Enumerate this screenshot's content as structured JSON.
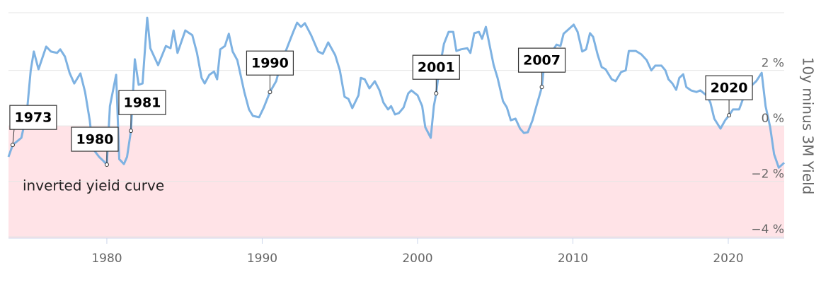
{
  "chart_data": {
    "type": "line",
    "y_axis_title": "10y minus 3M Yield",
    "xlim": [
      1973.67,
      2023.6
    ],
    "xticks": [
      1980,
      1990,
      2000,
      2010,
      2020
    ],
    "ylim": [
      -4.05,
      4.08
    ],
    "yticks": [
      {
        "value": -4,
        "label": "−4 %"
      },
      {
        "value": -2,
        "label": "−2 %"
      },
      {
        "value": 0,
        "label": "0 %"
      },
      {
        "value": 2,
        "label": "2 %"
      }
    ],
    "grid": true,
    "bands": [
      {
        "label": "inverted yield curve",
        "from": -4.05,
        "to": 0,
        "color": "#ffe3e7"
      }
    ],
    "series": [
      {
        "color": "#7eb2e2",
        "x": [
          1973.67,
          1973.94,
          1974.5,
          1974.85,
          1975.1,
          1975.3,
          1975.6,
          1976.1,
          1976.4,
          1976.8,
          1977.0,
          1977.3,
          1977.6,
          1977.9,
          1978.3,
          1978.6,
          1978.9,
          1979.1,
          1979.5,
          1979.8,
          1980.0,
          1980.2,
          1980.6,
          1980.8,
          1981.1,
          1981.3,
          1981.55,
          1981.8,
          1982.05,
          1982.3,
          1982.6,
          1982.8,
          1983.3,
          1983.8,
          1984.1,
          1984.3,
          1984.55,
          1985.05,
          1985.5,
          1985.8,
          1986.1,
          1986.3,
          1986.6,
          1986.9,
          1987.1,
          1987.3,
          1987.6,
          1987.85,
          1988.1,
          1988.4,
          1988.6,
          1988.85,
          1989.15,
          1989.4,
          1989.8,
          1990.1,
          1990.5,
          1990.9,
          1991.2,
          1991.7,
          1992.0,
          1992.25,
          1992.5,
          1992.75,
          1993.15,
          1993.6,
          1993.9,
          1994.25,
          1994.7,
          1995.0,
          1995.3,
          1995.55,
          1995.8,
          1996.2,
          1996.35,
          1996.6,
          1996.9,
          1997.25,
          1997.55,
          1997.8,
          1998.1,
          1998.3,
          1998.55,
          1998.8,
          1999.1,
          1999.4,
          1999.6,
          2000.0,
          2000.3,
          2000.5,
          2000.85,
          2001.05,
          2001.2,
          2001.35,
          2001.7,
          2002.0,
          2002.3,
          2002.5,
          2002.8,
          2003.2,
          2003.4,
          2003.65,
          2003.95,
          2004.15,
          2004.4,
          2004.65,
          2004.9,
          2005.15,
          2005.5,
          2005.75,
          2006.0,
          2006.3,
          2006.6,
          2006.85,
          2007.1,
          2007.4,
          2007.65,
          2007.85,
          2008.0,
          2008.2,
          2008.5,
          2008.75,
          2008.95,
          2009.2,
          2009.4,
          2009.7,
          2010.05,
          2010.3,
          2010.6,
          2010.85,
          2011.1,
          2011.3,
          2011.6,
          2011.85,
          2012.1,
          2012.5,
          2012.75,
          2013.1,
          2013.4,
          2013.6,
          2014.05,
          2014.4,
          2014.75,
          2015.05,
          2015.3,
          2015.7,
          2015.95,
          2016.15,
          2016.4,
          2016.65,
          2016.85,
          2017.1,
          2017.3,
          2017.6,
          2017.95,
          2018.2,
          2018.6,
          2018.85,
          2019.1,
          2019.5,
          2019.8,
          2020.05,
          2020.3,
          2020.7,
          2020.95,
          2021.3,
          2021.8,
          2022.15,
          2022.4,
          2022.7,
          2022.95,
          2023.25,
          2023.6
        ],
        "values": [
          -1.12,
          -0.69,
          -0.43,
          0.46,
          2.0,
          2.68,
          2.04,
          2.86,
          2.68,
          2.63,
          2.76,
          2.5,
          1.91,
          1.53,
          1.89,
          1.22,
          0.2,
          -0.82,
          -1.12,
          -1.28,
          -1.4,
          0.71,
          1.84,
          -1.2,
          -1.38,
          -1.12,
          -0.18,
          2.4,
          1.48,
          1.53,
          3.9,
          2.8,
          2.19,
          2.88,
          2.8,
          3.44,
          2.63,
          3.44,
          3.27,
          2.63,
          1.73,
          1.53,
          1.84,
          1.96,
          1.68,
          2.76,
          2.88,
          3.32,
          2.68,
          2.37,
          1.86,
          1.22,
          0.59,
          0.36,
          0.31,
          0.66,
          1.22,
          1.61,
          2.24,
          2.96,
          3.39,
          3.72,
          3.57,
          3.7,
          3.27,
          2.68,
          2.6,
          3.01,
          2.55,
          2.0,
          1.05,
          0.97,
          0.64,
          1.1,
          1.73,
          1.68,
          1.35,
          1.61,
          1.28,
          0.84,
          0.59,
          0.71,
          0.41,
          0.46,
          0.66,
          1.17,
          1.28,
          1.1,
          0.71,
          -0.05,
          -0.43,
          0.71,
          1.17,
          1.86,
          2.96,
          3.39,
          3.39,
          2.7,
          2.76,
          2.8,
          2.63,
          3.34,
          3.39,
          3.14,
          3.57,
          2.88,
          2.19,
          1.73,
          0.89,
          0.66,
          0.2,
          0.26,
          -0.1,
          -0.26,
          -0.23,
          0.2,
          0.71,
          1.1,
          1.4,
          2.5,
          2.63,
          2.76,
          2.93,
          2.88,
          3.32,
          3.47,
          3.65,
          3.39,
          2.68,
          2.76,
          3.34,
          3.21,
          2.55,
          2.12,
          2.04,
          1.68,
          1.61,
          1.94,
          2.0,
          2.7,
          2.7,
          2.58,
          2.37,
          2.0,
          2.17,
          2.17,
          2.0,
          1.68,
          1.53,
          1.3,
          1.73,
          1.86,
          1.4,
          1.28,
          1.22,
          1.28,
          1.1,
          0.84,
          0.26,
          -0.1,
          0.2,
          0.38,
          0.59,
          0.59,
          0.97,
          1.35,
          1.61,
          1.91,
          0.71,
          -0.05,
          -1.02,
          -1.51,
          -1.33
        ]
      }
    ],
    "annotations": [
      {
        "label": "1973",
        "x": 1973.94,
        "y": -0.69
      },
      {
        "label": "1980",
        "x": 1980.0,
        "y": -1.4
      },
      {
        "label": "1981",
        "x": 1981.55,
        "y": -0.18
      },
      {
        "label": "1990",
        "x": 1990.5,
        "y": 1.22
      },
      {
        "label": "2001",
        "x": 2001.2,
        "y": 1.17
      },
      {
        "label": "2007",
        "x": 2008.0,
        "y": 1.4
      },
      {
        "label": "2020",
        "x": 2020.05,
        "y": 0.38
      }
    ]
  }
}
